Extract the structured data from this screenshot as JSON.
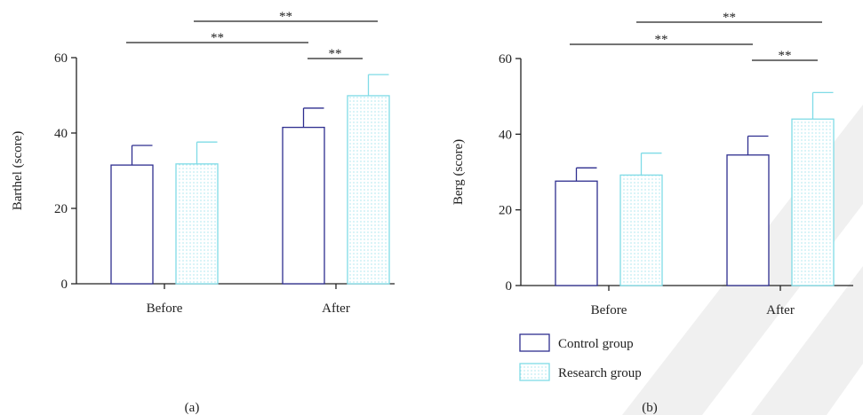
{
  "colors": {
    "control": "#2e2e8f",
    "research": "#7fdbe6",
    "axis": "#222222",
    "background": "#ffffff",
    "watermark": "#ededed"
  },
  "legend": {
    "control_label": "Control group",
    "research_label": "Research group"
  },
  "chart_data": [
    {
      "type": "bar",
      "panel_label": "(a)",
      "ylabel": "Barthel (score)",
      "xlabel": "",
      "ylim": [
        0,
        60
      ],
      "yticks": [
        0,
        20,
        40,
        60
      ],
      "categories": [
        "Before",
        "After"
      ],
      "series": [
        {
          "name": "Control group",
          "values": [
            31.5,
            41.5
          ],
          "error": [
            5.2,
            5.1
          ]
        },
        {
          "name": "Research group",
          "values": [
            31.8,
            49.9
          ],
          "error": [
            5.8,
            5.6
          ]
        }
      ],
      "significance": [
        {
          "from": "Before.Control group",
          "to": "After.Control group",
          "label": "**"
        },
        {
          "from": "Before.Research group",
          "to": "After.Research group",
          "label": "**"
        },
        {
          "from": "After.Control group",
          "to": "After.Research group",
          "label": "**"
        }
      ],
      "grid": false
    },
    {
      "type": "bar",
      "panel_label": "(b)",
      "ylabel": "Berg (score)",
      "xlabel": "",
      "ylim": [
        0,
        60
      ],
      "yticks": [
        0,
        20,
        40,
        60
      ],
      "categories": [
        "Before",
        "After"
      ],
      "series": [
        {
          "name": "Control group",
          "values": [
            27.6,
            34.5
          ],
          "error": [
            3.5,
            5.0
          ]
        },
        {
          "name": "Research group",
          "values": [
            29.2,
            44.0
          ],
          "error": [
            5.8,
            7.0
          ]
        }
      ],
      "significance": [
        {
          "from": "Before.Control group",
          "to": "After.Control group",
          "label": "**"
        },
        {
          "from": "Before.Research group",
          "to": "After.Research group",
          "label": "**"
        },
        {
          "from": "After.Control group",
          "to": "After.Research group",
          "label": "**"
        }
      ],
      "grid": false
    }
  ]
}
